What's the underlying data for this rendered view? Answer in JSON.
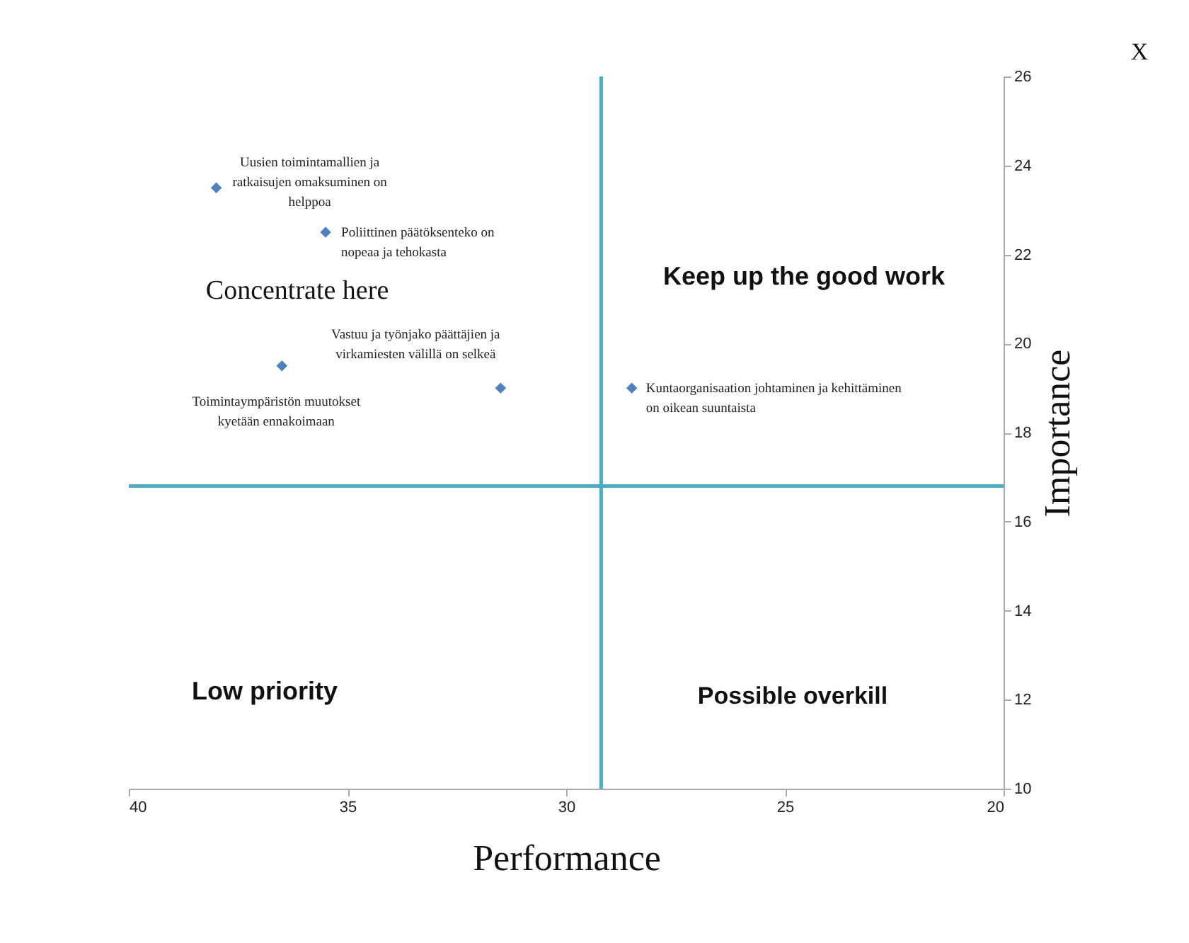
{
  "chart_data": {
    "type": "scatter",
    "xlabel": "Performance",
    "ylabel": "Importance",
    "x": [
      38.0,
      35.5,
      36.5,
      31.5,
      28.5
    ],
    "values": [
      23.5,
      22.5,
      19.5,
      19.0,
      19.0
    ],
    "color": "#4f81bd",
    "marker": "diamond",
    "xlim": [
      40,
      20
    ],
    "xticks": [
      40,
      35,
      30,
      25,
      20
    ],
    "ylim": [
      10,
      26
    ],
    "yticks": [
      10,
      12,
      14,
      16,
      18,
      20,
      22,
      24,
      26
    ],
    "grid": false,
    "ref_lines": [
      {
        "axis": "x",
        "value": 29.2,
        "color": "#4bacc6"
      },
      {
        "axis": "y",
        "value": 16.8,
        "color": "#4bacc6"
      }
    ],
    "annotations": [
      {
        "text": "Uusien toimintamallien ja ratkaisujen omaksuminen on helppoa",
        "x": 38.0,
        "y": 23.5
      },
      {
        "text": "Poliittinen päätöksenteko on nopeaa ja tehokasta",
        "x": 35.5,
        "y": 22.5
      },
      {
        "text": "Toimintaympäristön muutokset kyetään ennakoimaan",
        "x": 36.5,
        "y": 19.5
      },
      {
        "text": "Vastuu ja työnjako päättäjien ja virkamiesten välillä on selkeä",
        "x": 31.5,
        "y": 19.0
      },
      {
        "text": "Kuntaorganisaation johtaminen ja kehittäminen on oikean suuntaista",
        "x": 28.5,
        "y": 19.0
      },
      "Concentrate here",
      "Keep up the good work",
      "Low priority",
      "Possible overkill",
      "X"
    ]
  }
}
